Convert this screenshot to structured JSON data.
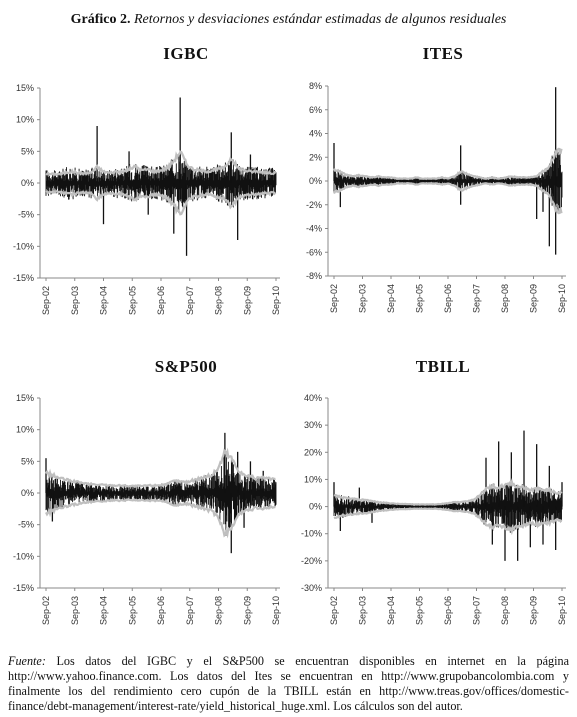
{
  "figure": {
    "label": "Gráfico 2.",
    "caption": "Retornos y desviaciones estándar estimadas de algunos residuales"
  },
  "footnote": {
    "label": "Fuente:",
    "text": "Los datos del IGBC y el S&P500 se encuentran disponibles en internet en la página http://www.yahoo.finance.com. Los datos del Ites se encuentran en http://www.grupobancolombia.com y finalmente los del rendimiento cero cupón de la TBILL están en http://www.treas.gov/offices/domestic-finance/debt-management/interest-rate/yield_historical_huge.xml. Los cálculos son del autor."
  },
  "chart_data": [
    {
      "type": "line",
      "title": "IGBC",
      "categories": [
        "Sep-02",
        "Sep-03",
        "Sep-04",
        "Sep-05",
        "Sep-06",
        "Sep-07",
        "Sep-08",
        "Sep-09",
        "Sep-10"
      ],
      "yticks": [
        "15%",
        "10%",
        "5%",
        "0%",
        "-5%",
        "-10%",
        "-15%"
      ],
      "ylim": [
        -15,
        15
      ],
      "grid": false,
      "series": [
        {
          "role": "returns",
          "color": "#111111",
          "band": [
            2.2,
            2.0,
            2.0,
            2.5,
            2.8,
            2.3,
            2.2,
            2.5,
            2.2,
            2.0,
            2.2,
            2.6,
            2.3,
            3.0,
            3.5,
            2.8,
            3.0,
            2.5,
            2.8,
            3.2,
            4.0,
            5.5,
            3.2,
            3.0,
            2.8,
            2.6,
            2.8,
            3.0,
            3.2,
            4.5,
            3.0,
            2.8,
            2.6,
            2.6,
            2.5,
            2.5,
            2.4
          ],
          "spikes": [
            {
              "i": 8,
              "v": 9.0
            },
            {
              "i": 9,
              "v": -6.5
            },
            {
              "i": 16,
              "v": -5.0
            },
            {
              "i": 20,
              "v": -8.0
            },
            {
              "i": 21,
              "v": 13.5
            },
            {
              "i": 22,
              "v": -11.5
            },
            {
              "i": 29,
              "v": 8.0
            },
            {
              "i": 30,
              "v": -9.0
            },
            {
              "i": 32,
              "v": 4.5
            },
            {
              "i": 13,
              "v": 5.0
            }
          ]
        },
        {
          "role": "std_dev",
          "color": "#bfbfbf",
          "band": [
            1.5,
            1.4,
            1.4,
            1.6,
            1.8,
            1.6,
            1.5,
            1.6,
            2.5,
            1.8,
            1.6,
            1.8,
            1.7,
            2.2,
            2.6,
            2.0,
            2.2,
            1.8,
            2.0,
            2.4,
            3.5,
            5.0,
            3.0,
            2.2,
            2.0,
            1.8,
            2.0,
            2.2,
            2.4,
            4.0,
            2.4,
            2.0,
            1.8,
            1.8,
            1.7,
            1.6,
            1.6
          ]
        }
      ]
    },
    {
      "type": "line",
      "title": "ITES",
      "categories": [
        "Sep-02",
        "Sep-03",
        "Sep-04",
        "Sep-05",
        "Sep-06",
        "Sep-07",
        "Sep-08",
        "Sep-09",
        "Sep-10"
      ],
      "yticks": [
        "8%",
        "6%",
        "4%",
        "2%",
        "0%",
        "-2%",
        "-4%",
        "-6%",
        "-8%"
      ],
      "ylim": [
        -8,
        8
      ],
      "grid": false,
      "series": [
        {
          "role": "returns",
          "color": "#111111",
          "band": [
            1.2,
            0.9,
            0.6,
            0.5,
            0.6,
            0.5,
            0.4,
            0.5,
            0.4,
            0.4,
            0.3,
            0.3,
            0.3,
            0.4,
            0.3,
            0.3,
            0.3,
            0.4,
            0.3,
            0.5,
            0.9,
            0.7,
            0.5,
            0.4,
            0.3,
            0.4,
            0.3,
            0.4,
            0.5,
            0.4,
            0.4,
            0.4,
            0.5,
            1.0,
            1.5,
            3.0,
            3.0
          ],
          "spikes": [
            {
              "i": 0,
              "v": 3.2
            },
            {
              "i": 1,
              "v": -2.2
            },
            {
              "i": 20,
              "v": 3.0
            },
            {
              "i": 20,
              "v": -2.0
            },
            {
              "i": 32,
              "v": -3.2
            },
            {
              "i": 33,
              "v": -2.6
            },
            {
              "i": 35,
              "v": 7.9
            },
            {
              "i": 35,
              "v": -6.2
            },
            {
              "i": 34,
              "v": -5.5
            }
          ]
        },
        {
          "role": "std_dev",
          "color": "#bfbfbf",
          "band": [
            1.0,
            0.8,
            0.5,
            0.4,
            0.5,
            0.4,
            0.3,
            0.4,
            0.3,
            0.3,
            0.2,
            0.2,
            0.2,
            0.3,
            0.2,
            0.2,
            0.2,
            0.3,
            0.2,
            0.4,
            0.8,
            0.6,
            0.4,
            0.3,
            0.2,
            0.3,
            0.2,
            0.3,
            0.4,
            0.3,
            0.3,
            0.3,
            0.4,
            0.8,
            1.2,
            2.5,
            2.5
          ]
        }
      ]
    },
    {
      "type": "line",
      "title": "S&P500",
      "categories": [
        "Sep-02",
        "Sep-03",
        "Sep-04",
        "Sep-05",
        "Sep-06",
        "Sep-07",
        "Sep-08",
        "Sep-09",
        "Sep-10"
      ],
      "yticks": [
        "15%",
        "10%",
        "5%",
        "0%",
        "-5%",
        "-10%",
        "-15%"
      ],
      "ylim": [
        -15,
        15
      ],
      "grid": false,
      "series": [
        {
          "role": "returns",
          "color": "#111111",
          "band": [
            3.5,
            3.0,
            2.6,
            2.3,
            2.0,
            1.8,
            1.6,
            1.5,
            1.4,
            1.4,
            1.3,
            1.3,
            1.3,
            1.2,
            1.2,
            1.2,
            1.3,
            1.3,
            1.5,
            1.6,
            2.2,
            2.0,
            1.8,
            2.2,
            2.5,
            2.8,
            3.0,
            4.5,
            7.0,
            6.0,
            4.0,
            3.0,
            2.8,
            2.5,
            2.6,
            2.4,
            2.4
          ],
          "spikes": [
            {
              "i": 0,
              "v": 5.5
            },
            {
              "i": 1,
              "v": -4.5
            },
            {
              "i": 28,
              "v": 9.5
            },
            {
              "i": 29,
              "v": -9.5
            },
            {
              "i": 30,
              "v": 6.5
            },
            {
              "i": 31,
              "v": -5.5
            },
            {
              "i": 32,
              "v": 5.0
            },
            {
              "i": 34,
              "v": 3.5
            }
          ]
        },
        {
          "role": "std_dev",
          "color": "#bfbfbf",
          "band": [
            3.2,
            2.8,
            2.4,
            2.1,
            1.9,
            1.7,
            1.5,
            1.4,
            1.3,
            1.3,
            1.2,
            1.2,
            1.2,
            1.1,
            1.1,
            1.1,
            1.2,
            1.2,
            1.3,
            1.4,
            1.9,
            1.8,
            1.7,
            2.0,
            2.3,
            2.6,
            2.8,
            4.0,
            6.5,
            5.5,
            3.8,
            2.8,
            2.6,
            2.3,
            2.4,
            2.2,
            2.2
          ]
        }
      ]
    },
    {
      "type": "line",
      "title": "TBILL",
      "categories": [
        "Sep-02",
        "Sep-03",
        "Sep-04",
        "Sep-05",
        "Sep-06",
        "Sep-07",
        "Sep-08",
        "Sep-09",
        "Sep-10"
      ],
      "yticks": [
        "40%",
        "30%",
        "20%",
        "10%",
        "0%",
        "-10%",
        "-20%",
        "-30%"
      ],
      "ylim": [
        -30,
        40
      ],
      "grid": false,
      "series": [
        {
          "role": "returns",
          "color": "#111111",
          "band": [
            5,
            4.5,
            4,
            3.5,
            3,
            3,
            2.5,
            2,
            1.8,
            1.5,
            1.3,
            1.2,
            1.2,
            1.1,
            1.0,
            1.0,
            1.0,
            1.2,
            1.5,
            2.0,
            2.0,
            2.5,
            3,
            5,
            8,
            9,
            8,
            9,
            10,
            9,
            8,
            7,
            8,
            7,
            7,
            6,
            6
          ],
          "spikes": [
            {
              "i": 0,
              "v": 9
            },
            {
              "i": 1,
              "v": -9
            },
            {
              "i": 4,
              "v": 7
            },
            {
              "i": 6,
              "v": -6
            },
            {
              "i": 24,
              "v": 18
            },
            {
              "i": 25,
              "v": -14
            },
            {
              "i": 26,
              "v": 24
            },
            {
              "i": 27,
              "v": -20
            },
            {
              "i": 28,
              "v": 20
            },
            {
              "i": 29,
              "v": -20
            },
            {
              "i": 30,
              "v": 28
            },
            {
              "i": 31,
              "v": -15
            },
            {
              "i": 32,
              "v": 23
            },
            {
              "i": 33,
              "v": -14
            },
            {
              "i": 34,
              "v": 15
            },
            {
              "i": 35,
              "v": -16
            },
            {
              "i": 36,
              "v": 9
            }
          ]
        },
        {
          "role": "std_dev",
          "color": "#bfbfbf",
          "band": [
            4,
            3.5,
            3,
            2.8,
            2.5,
            2.5,
            2,
            1.6,
            1.4,
            1.2,
            1.0,
            0.9,
            0.9,
            0.8,
            0.8,
            0.8,
            0.8,
            1.0,
            1.2,
            1.6,
            1.6,
            2.0,
            2.5,
            4,
            6.5,
            7.5,
            7,
            7.5,
            8.5,
            7.5,
            7,
            6,
            6.5,
            6,
            6,
            5,
            5
          ]
        }
      ]
    }
  ]
}
